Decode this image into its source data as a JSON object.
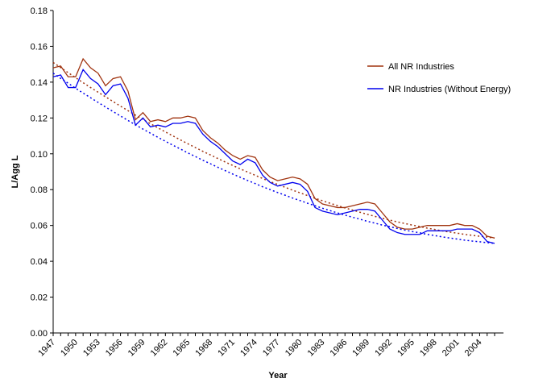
{
  "chart_data": {
    "type": "line",
    "y_label": "L/Agg L",
    "x_label": "Year",
    "categories": [
      "1947",
      null,
      null,
      "1950",
      null,
      null,
      "1953",
      null,
      null,
      "1956",
      null,
      null,
      "1959",
      null,
      null,
      "1962",
      null,
      null,
      "1965",
      null,
      null,
      "1968",
      null,
      null,
      "1971",
      null,
      null,
      "1974",
      null,
      null,
      "1977",
      null,
      null,
      "1980",
      null,
      null,
      "1983",
      null,
      null,
      "1986",
      null,
      null,
      "1989",
      null,
      null,
      "1992",
      null,
      null,
      "1995",
      null,
      null,
      "1998",
      null,
      null,
      "2001",
      null,
      null,
      "2004",
      null,
      null
    ],
    "series": [
      {
        "name": "All NR Industries",
        "color": "#a0330f",
        "values": [
          0.148,
          0.149,
          0.143,
          0.143,
          0.153,
          0.148,
          0.145,
          0.138,
          0.142,
          0.143,
          0.135,
          0.119,
          0.123,
          0.118,
          0.119,
          0.118,
          0.12,
          0.12,
          0.121,
          0.12,
          0.113,
          0.109,
          0.106,
          0.102,
          0.099,
          0.097,
          0.099,
          0.098,
          0.091,
          0.087,
          0.085,
          0.086,
          0.087,
          0.086,
          0.083,
          0.075,
          0.072,
          0.071,
          0.07,
          0.07,
          0.071,
          0.072,
          0.073,
          0.072,
          0.067,
          0.062,
          0.059,
          0.058,
          0.058,
          0.059,
          0.06,
          0.06,
          0.06,
          0.06,
          0.061,
          0.06,
          0.06,
          0.058,
          0.054,
          0.053
        ],
        "trend": [
          0.151,
          0.1481,
          0.1453,
          0.1425,
          0.1397,
          0.137,
          0.1344,
          0.1318,
          0.1292,
          0.1266,
          0.1241,
          0.1216,
          0.1192,
          0.1168,
          0.1145,
          0.1122,
          0.11,
          0.1078,
          0.1056,
          0.1035,
          0.1014,
          0.0994,
          0.0974,
          0.0954,
          0.0935,
          0.0916,
          0.0898,
          0.088,
          0.0862,
          0.0845,
          0.0829,
          0.0813,
          0.0797,
          0.0782,
          0.0767,
          0.0752,
          0.0738,
          0.0724,
          0.0711,
          0.0698,
          0.0686,
          0.0674,
          0.0662,
          0.0651,
          0.064,
          0.063,
          0.062,
          0.0611,
          0.0602,
          0.0594,
          0.0585,
          0.0578,
          0.057,
          0.0563,
          0.0557,
          0.055,
          0.0545,
          0.054,
          0.0535,
          0.053
        ]
      },
      {
        "name": "NR Industries (Without Energy)",
        "color": "#0000ee",
        "values": [
          0.143,
          0.144,
          0.137,
          0.137,
          0.147,
          0.142,
          0.139,
          0.133,
          0.138,
          0.139,
          0.131,
          0.116,
          0.12,
          0.115,
          0.116,
          0.115,
          0.117,
          0.117,
          0.118,
          0.117,
          0.111,
          0.107,
          0.104,
          0.1,
          0.096,
          0.094,
          0.097,
          0.095,
          0.088,
          0.084,
          0.082,
          0.083,
          0.084,
          0.083,
          0.079,
          0.07,
          0.068,
          0.067,
          0.066,
          0.067,
          0.068,
          0.069,
          0.069,
          0.068,
          0.063,
          0.058,
          0.056,
          0.055,
          0.055,
          0.055,
          0.057,
          0.057,
          0.057,
          0.057,
          0.058,
          0.058,
          0.058,
          0.056,
          0.051,
          0.05
        ],
        "trend": [
          0.145,
          0.1421,
          0.1394,
          0.1366,
          0.1339,
          0.1313,
          0.1287,
          0.1261,
          0.1236,
          0.1211,
          0.1186,
          0.1162,
          0.1138,
          0.1115,
          0.1092,
          0.107,
          0.1048,
          0.1027,
          0.1005,
          0.0985,
          0.0964,
          0.0945,
          0.0925,
          0.0906,
          0.0887,
          0.0869,
          0.0851,
          0.0834,
          0.0816,
          0.08,
          0.0784,
          0.0769,
          0.0753,
          0.0739,
          0.0724,
          0.071,
          0.0696,
          0.0683,
          0.067,
          0.0658,
          0.0646,
          0.0635,
          0.0623,
          0.0613,
          0.0602,
          0.0593,
          0.0583,
          0.0574,
          0.0566,
          0.0559,
          0.055,
          0.0544,
          0.0536,
          0.053,
          0.0524,
          0.0518,
          0.0513,
          0.0509,
          0.0504,
          0.05
        ]
      }
    ],
    "ylim": [
      0,
      0.18
    ],
    "yticks": [
      {
        "value": 0,
        "label": "0.00"
      },
      {
        "value": 0.02,
        "label": "0.02"
      },
      {
        "value": 0.04,
        "label": "0.04"
      },
      {
        "value": 0.06,
        "label": "0.06"
      },
      {
        "value": 0.08,
        "label": "0.08"
      },
      {
        "value": 0.1,
        "label": "0.10"
      },
      {
        "value": 0.12,
        "label": "0.12"
      },
      {
        "value": 0.14,
        "label": "0.14"
      },
      {
        "value": 0.16,
        "label": "0.16"
      },
      {
        "value": 0.18,
        "label": "0.18"
      }
    ],
    "grid": false,
    "legend": "right"
  }
}
